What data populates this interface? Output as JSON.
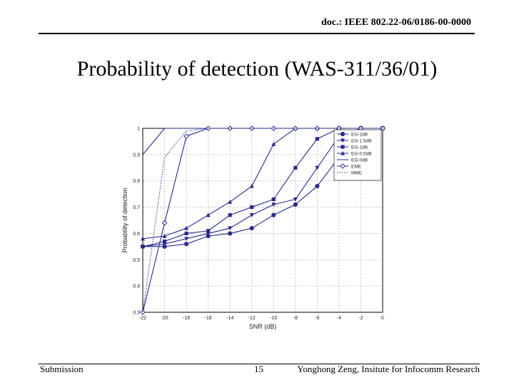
{
  "header": {
    "doc_label": "doc.:",
    "doc_number": "IEEE 802.22-06/0186-00-0000"
  },
  "slide": {
    "title": "Probability of detection (WAS-311/36/01)"
  },
  "footer": {
    "left": "Submission",
    "page": "15",
    "right": "Yonghong Zeng, Insitute for Infocomm Research"
  },
  "chart_data": {
    "type": "line",
    "title": "",
    "xlabel": "SNR (dB)",
    "ylabel": "Probability of detection",
    "x": [
      -22,
      -20,
      -18,
      -16,
      -14,
      -12,
      -10,
      -8,
      -6,
      -4,
      -2,
      0
    ],
    "x_tick_labels": [
      "-22",
      "-20",
      "-18",
      "-16",
      "-14",
      "-12",
      "-10",
      "-8",
      "-6",
      "-4",
      "-2",
      "0"
    ],
    "xlim": [
      -22,
      0
    ],
    "ylim": [
      0.3,
      1.0
    ],
    "y_ticks": [
      0.3,
      0.4,
      0.5,
      0.6,
      0.7,
      0.8,
      0.9,
      1.0
    ],
    "y_tick_labels": [
      "0.3",
      "0.4",
      "0.5",
      "0.6",
      "0.7",
      "0.8",
      "0.9",
      "1"
    ],
    "grid": true,
    "legend_position": "top-right",
    "series": [
      {
        "name": "EG-2dB",
        "marker": "circle",
        "style": "solid",
        "values": [
          0.55,
          0.55,
          0.56,
          0.59,
          0.6,
          0.62,
          0.67,
          0.71,
          0.78,
          0.89,
          1.0,
          1.0
        ]
      },
      {
        "name": "EG-1.5dB",
        "marker": "triangle-down",
        "style": "solid",
        "values": [
          0.55,
          0.56,
          0.58,
          0.6,
          0.62,
          0.67,
          0.71,
          0.73,
          0.85,
          0.97,
          1.0,
          1.0
        ]
      },
      {
        "name": "EG-1dB",
        "marker": "square",
        "style": "solid",
        "values": [
          0.55,
          0.57,
          0.6,
          0.61,
          0.67,
          0.7,
          0.73,
          0.85,
          0.96,
          1.0,
          1.0,
          1.0
        ]
      },
      {
        "name": "EG-0.5dB",
        "marker": "triangle-up",
        "style": "solid",
        "values": [
          0.58,
          0.59,
          0.62,
          0.67,
          0.72,
          0.78,
          0.94,
          1.0,
          1.0,
          1.0,
          1.0,
          1.0
        ]
      },
      {
        "name": "EG-0dB",
        "marker": "none",
        "style": "solid",
        "values": [
          0.9,
          1.0,
          1.0,
          1.0,
          1.0,
          1.0,
          1.0,
          1.0,
          1.0,
          1.0,
          1.0,
          1.0
        ]
      },
      {
        "name": "EME",
        "marker": "diamond",
        "style": "solid",
        "values": [
          0.3,
          0.64,
          0.97,
          1.0,
          1.0,
          1.0,
          1.0,
          1.0,
          1.0,
          1.0,
          1.0,
          1.0
        ]
      },
      {
        "name": "MME",
        "marker": "none",
        "style": "dotted",
        "values": [
          0.3,
          0.89,
          0.99,
          1.0,
          1.0,
          1.0,
          1.0,
          1.0,
          1.0,
          1.0,
          1.0,
          1.0
        ]
      }
    ],
    "colors": {
      "line": "#2a2a8c",
      "grid": "#b9b9b9",
      "axis": "#000000"
    }
  }
}
